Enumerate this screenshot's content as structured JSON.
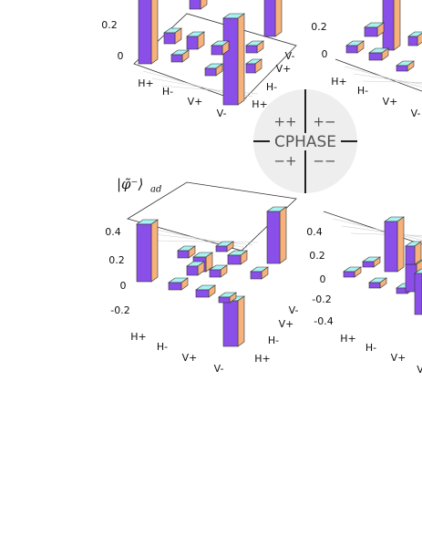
{
  "panels": [
    {
      "zticks": [
        0.2,
        0
      ],
      "front_labels": [
        "H+",
        "H-",
        "V+",
        "V-"
      ],
      "side_labels": [
        "V-",
        "V+",
        "H-",
        "H+"
      ]
    },
    {
      "zticks": [
        0.2,
        0
      ],
      "front_labels": [
        "H+",
        "H-",
        "V+",
        "V-"
      ]
    },
    {
      "zticks": [
        0.4,
        0.2,
        0,
        -0.2
      ],
      "front_labels": [
        "H+",
        "H-",
        "V+",
        "V-"
      ],
      "side_labels": [
        "V-",
        "V+",
        "H-",
        "H+"
      ]
    },
    {
      "zticks": [
        0.4,
        0.2,
        0,
        -0.2,
        -0.4
      ],
      "front_labels": [
        "H+",
        "H-",
        "V+",
        "V"
      ]
    }
  ],
  "badge": {
    "quadrants": [
      "++",
      "+−",
      "−+",
      "−−"
    ],
    "label": "CPHASE"
  },
  "state_label": {
    "base": "|φ̃⁻⟩",
    "sub": "ad"
  }
}
